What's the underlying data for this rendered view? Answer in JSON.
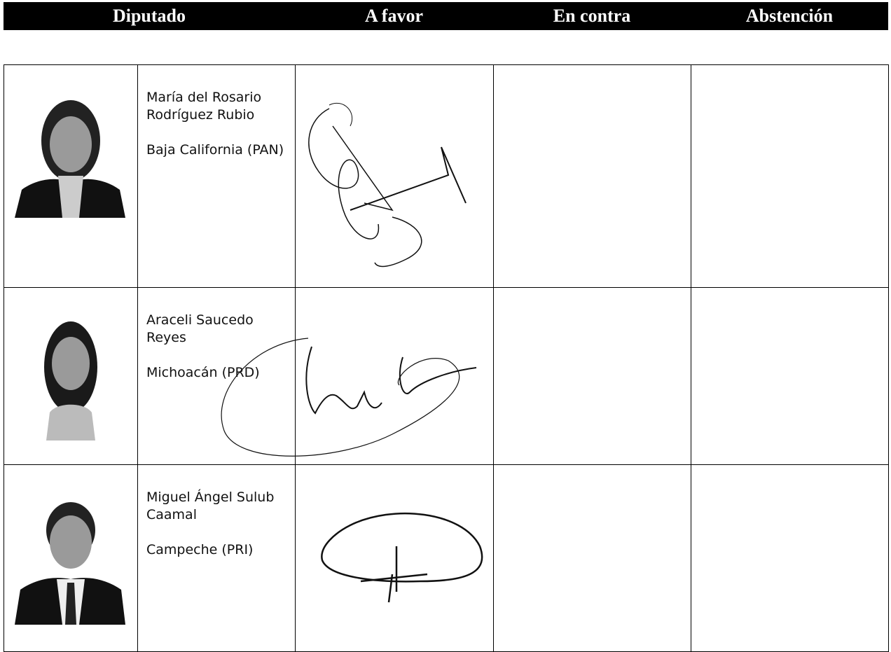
{
  "header": {
    "columns": [
      "Diputado",
      "A favor",
      "En contra",
      "Abstención"
    ]
  },
  "rows": [
    {
      "name": "María del Rosario Rodríguez Rubio",
      "district": "Baja California (PAN)"
    },
    {
      "name": "Araceli Saucedo Reyes",
      "district": "Michoacán (PRD)"
    },
    {
      "name": "Miguel Ángel Sulub Caamal",
      "district": "Campeche (PRI)"
    }
  ]
}
